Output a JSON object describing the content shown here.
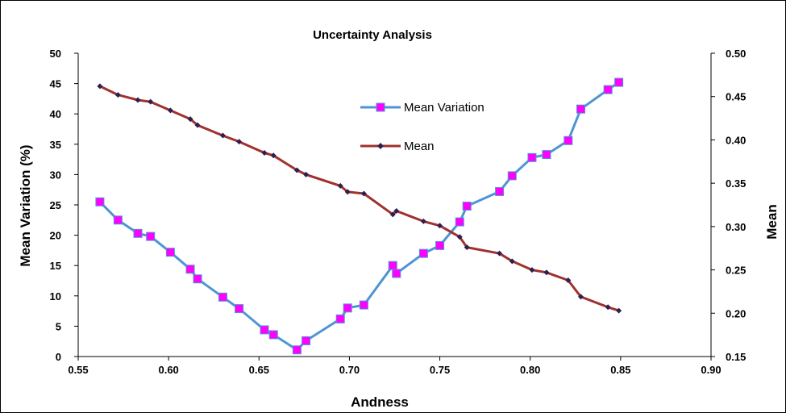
{
  "chart_data": {
    "type": "line",
    "title": "Uncertainty  Analysis",
    "xlabel": "Andness",
    "ylabel_left": "Mean Variation  (%)",
    "ylabel_right": "Mean",
    "xlim": [
      0.55,
      0.9
    ],
    "ylim_left": [
      0,
      50
    ],
    "ylim_right": [
      0.15,
      0.5
    ],
    "x_ticks": [
      "0.55",
      "0.60",
      "0.65",
      "0.70",
      "0.75",
      "0.80",
      "0.85",
      "0.90"
    ],
    "y_left_ticks": [
      "0",
      "5",
      "10",
      "15",
      "20",
      "25",
      "30",
      "35",
      "40",
      "45",
      "50"
    ],
    "y_right_ticks": [
      "0.15",
      "0.20",
      "0.25",
      "0.30",
      "0.35",
      "0.40",
      "0.45",
      "0.50"
    ],
    "grid": false,
    "legend_position": "upper-center",
    "series": [
      {
        "name": "Mean Variation",
        "axis": "left",
        "color": "#4f94d4",
        "marker_color": "#ff00ff",
        "marker": "square",
        "x": [
          0.562,
          0.572,
          0.583,
          0.59,
          0.601,
          0.612,
          0.616,
          0.63,
          0.639,
          0.653,
          0.658,
          0.671,
          0.676,
          0.695,
          0.699,
          0.708,
          0.724,
          0.726,
          0.741,
          0.75,
          0.761,
          0.765,
          0.783,
          0.79,
          0.801,
          0.809,
          0.821,
          0.828,
          0.843,
          0.849
        ],
        "y": [
          25.5,
          22.5,
          20.3,
          19.8,
          17.2,
          14.4,
          12.8,
          9.8,
          7.9,
          4.4,
          3.6,
          1.1,
          2.6,
          6.2,
          8.0,
          8.5,
          15.0,
          13.7,
          17.0,
          18.3,
          22.2,
          24.8,
          27.2,
          29.8,
          32.8,
          33.3,
          35.6,
          40.8,
          44.0,
          45.2
        ]
      },
      {
        "name": "Mean",
        "axis": "right",
        "color": "#a0312e",
        "marker_color": "#2e1f4f",
        "marker": "diamond",
        "x": [
          0.562,
          0.572,
          0.583,
          0.59,
          0.601,
          0.612,
          0.616,
          0.63,
          0.639,
          0.653,
          0.658,
          0.671,
          0.676,
          0.695,
          0.699,
          0.708,
          0.724,
          0.726,
          0.741,
          0.75,
          0.761,
          0.765,
          0.783,
          0.79,
          0.801,
          0.809,
          0.821,
          0.828,
          0.843,
          0.849
        ],
        "y": [
          0.462,
          0.452,
          0.446,
          0.444,
          0.434,
          0.424,
          0.417,
          0.405,
          0.398,
          0.385,
          0.382,
          0.365,
          0.36,
          0.347,
          0.34,
          0.338,
          0.314,
          0.318,
          0.306,
          0.301,
          0.288,
          0.276,
          0.269,
          0.26,
          0.25,
          0.247,
          0.238,
          0.219,
          0.207,
          0.203
        ]
      }
    ]
  }
}
